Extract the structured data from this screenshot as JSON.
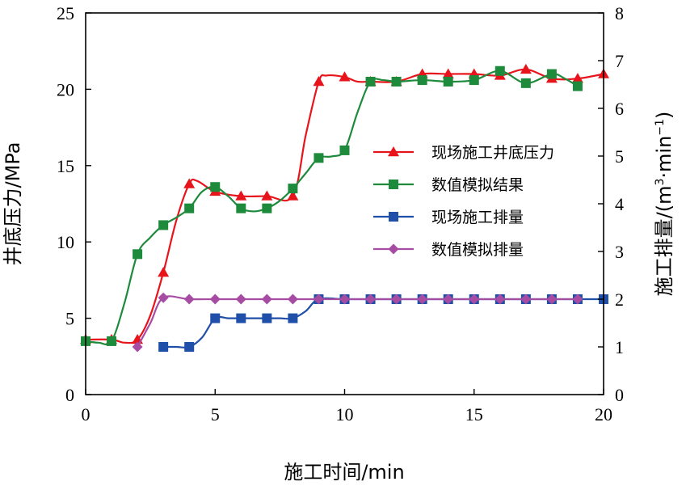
{
  "chart_data": {
    "type": "line",
    "xlabel": "施工时间/min",
    "ylabel_left": "井底压力/MPa",
    "ylabel_right_parts": [
      "施工排量/(m",
      "3",
      "·min",
      "−1",
      ")"
    ],
    "x_ticks": [
      "0",
      "5",
      "10",
      "15",
      "20"
    ],
    "y_left_ticks": [
      "0",
      "5",
      "10",
      "15",
      "20",
      "25"
    ],
    "y_right_ticks": [
      "0",
      "1",
      "2",
      "3",
      "4",
      "5",
      "6",
      "7",
      "8"
    ],
    "xlim": [
      0,
      20
    ],
    "ylim_left": [
      0,
      25
    ],
    "ylim_right": [
      0,
      8
    ],
    "grid": false,
    "legend_position": "center-right",
    "series": [
      {
        "name": "现场施工井底压力",
        "axis": "left",
        "color": "#e8141b",
        "marker": "triangle",
        "points": [
          [
            0,
            3.6
          ],
          [
            1,
            3.6
          ],
          [
            1.5,
            3.4
          ],
          [
            2,
            3.6
          ],
          [
            2.5,
            5.2
          ],
          [
            3,
            8.0
          ],
          [
            3.5,
            11.4
          ],
          [
            4,
            13.8
          ],
          [
            4.3,
            14.0
          ],
          [
            5,
            13.3
          ],
          [
            6,
            13.0
          ],
          [
            7,
            13.0
          ],
          [
            8,
            13.0
          ],
          [
            8.5,
            17.0
          ],
          [
            9,
            20.5
          ],
          [
            9.3,
            20.9
          ],
          [
            10,
            20.8
          ],
          [
            10.5,
            20.5
          ],
          [
            11,
            20.5
          ],
          [
            12,
            20.5
          ],
          [
            13,
            21.0
          ],
          [
            14,
            21.0
          ],
          [
            15,
            21.0
          ],
          [
            16,
            20.9
          ],
          [
            17,
            21.3
          ],
          [
            18,
            20.7
          ],
          [
            19,
            20.7
          ],
          [
            20,
            21.0
          ]
        ],
        "marker_x": [
          0,
          1,
          2,
          3,
          4,
          5,
          6,
          7,
          8,
          9,
          10,
          11,
          12,
          13,
          14,
          15,
          16,
          17,
          18,
          19,
          20
        ]
      },
      {
        "name": "数值模拟结果",
        "axis": "left",
        "color": "#1e8a3c",
        "marker": "square",
        "points": [
          [
            0,
            3.5
          ],
          [
            0.5,
            3.4
          ],
          [
            1,
            3.5
          ],
          [
            1.5,
            6.0
          ],
          [
            2,
            9.2
          ],
          [
            2.5,
            10.3
          ],
          [
            3,
            11.1
          ],
          [
            3.5,
            11.6
          ],
          [
            4,
            12.2
          ],
          [
            4.5,
            13.3
          ],
          [
            5,
            13.6
          ],
          [
            5.5,
            13.0
          ],
          [
            6,
            12.2
          ],
          [
            6.5,
            12.0
          ],
          [
            7,
            12.2
          ],
          [
            7.5,
            12.7
          ],
          [
            8,
            13.5
          ],
          [
            8.5,
            14.5
          ],
          [
            9,
            15.5
          ],
          [
            9.5,
            15.6
          ],
          [
            10,
            16.0
          ],
          [
            10.5,
            18.5
          ],
          [
            11,
            20.5
          ],
          [
            11.5,
            20.6
          ],
          [
            12,
            20.5
          ],
          [
            13,
            20.6
          ],
          [
            14,
            20.5
          ],
          [
            15,
            20.6
          ],
          [
            16,
            21.2
          ],
          [
            17,
            20.4
          ],
          [
            18,
            21.0
          ],
          [
            18.5,
            20.7
          ],
          [
            19,
            20.2
          ]
        ],
        "marker_x": [
          0,
          1,
          2,
          3,
          4,
          5,
          6,
          7,
          8,
          9,
          10,
          11,
          12,
          13,
          14,
          15,
          16,
          17,
          18,
          19
        ]
      },
      {
        "name": "现场施工排量",
        "axis": "right",
        "color": "#1f4fa8",
        "marker": "square",
        "points": [
          [
            3,
            1.0
          ],
          [
            3.5,
            1.0
          ],
          [
            4,
            1.0
          ],
          [
            4.5,
            1.2
          ],
          [
            5,
            1.6
          ],
          [
            5.5,
            1.6
          ],
          [
            6,
            1.6
          ],
          [
            7,
            1.6
          ],
          [
            7.5,
            1.6
          ],
          [
            8,
            1.6
          ],
          [
            8.5,
            1.75
          ],
          [
            9,
            2.0
          ],
          [
            10,
            2.0
          ],
          [
            11,
            2.0
          ],
          [
            12,
            2.0
          ],
          [
            13,
            2.0
          ],
          [
            14,
            2.0
          ],
          [
            15,
            2.0
          ],
          [
            16,
            2.0
          ],
          [
            17,
            2.0
          ],
          [
            18,
            2.0
          ],
          [
            19,
            2.0
          ],
          [
            20,
            2.0
          ]
        ],
        "marker_x": [
          3,
          4,
          5,
          6,
          7,
          8,
          9,
          10,
          11,
          12,
          13,
          14,
          15,
          16,
          17,
          18,
          19,
          20
        ]
      },
      {
        "name": "数值模拟排量",
        "axis": "right",
        "color": "#a74ca3",
        "marker": "diamond",
        "points": [
          [
            2,
            1.0
          ],
          [
            2.5,
            1.5
          ],
          [
            3,
            2.03
          ],
          [
            4,
            2.0
          ],
          [
            5,
            2.0
          ],
          [
            6,
            2.0
          ],
          [
            7,
            2.0
          ],
          [
            8,
            2.0
          ],
          [
            9,
            2.0
          ],
          [
            10,
            2.0
          ],
          [
            11,
            2.0
          ],
          [
            12,
            2.0
          ],
          [
            13,
            2.0
          ],
          [
            14,
            2.0
          ],
          [
            15,
            2.0
          ],
          [
            16,
            2.0
          ],
          [
            17,
            2.0
          ],
          [
            18,
            2.0
          ],
          [
            19,
            2.0
          ]
        ],
        "marker_x": [
          2,
          3,
          4,
          5,
          6,
          7,
          8,
          9,
          10,
          11,
          12,
          13,
          14,
          15,
          16,
          17,
          18,
          19
        ]
      }
    ]
  }
}
